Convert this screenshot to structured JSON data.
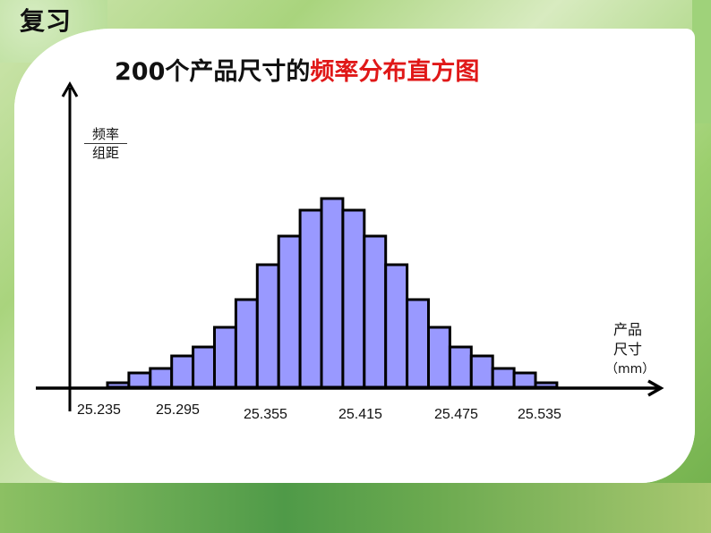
{
  "slide": {
    "label": "复习",
    "title_black": "200个产品尺寸的",
    "title_red": "频率分布直方图"
  },
  "colors": {
    "bar_fill": "#9999ff",
    "bar_stroke": "#000000",
    "title_red": "#e01818",
    "panel": "#ffffff"
  },
  "axes": {
    "y_label_numerator": "频率",
    "y_label_denominator": "组距",
    "x_label_line1": "产品",
    "x_label_line2": "尺寸",
    "x_label_unit": "（mm）",
    "x_ticks": [
      "25.235",
      "25.295",
      "25.355",
      "25.415",
      "25.475",
      "25.535"
    ]
  },
  "chart_data": {
    "type": "bar",
    "title": "200个产品尺寸的频率分布直方图",
    "xlabel": "产品尺寸（mm）",
    "ylabel": "频率/组距",
    "x_tick_labels": [
      "25.235",
      "25.295",
      "25.355",
      "25.415",
      "25.475",
      "25.535"
    ],
    "bin_count": 21,
    "bar_relative_heights": [
      5,
      16,
      21,
      35,
      45,
      67,
      98,
      137,
      169,
      198,
      211,
      198,
      169,
      137,
      98,
      67,
      45,
      35,
      21,
      16,
      5
    ],
    "notes": "Symmetric bell-shaped histogram; no y tick values shown; heights in pixels relative to baseline",
    "grid": false,
    "legend": null
  }
}
